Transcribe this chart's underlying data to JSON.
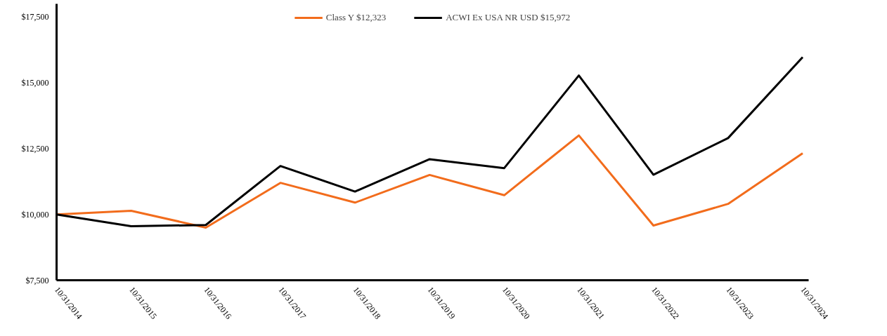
{
  "chart_data": {
    "type": "line",
    "categories": [
      "10/31/2014",
      "10/31/2015",
      "10/31/2016",
      "10/31/2017",
      "10/31/2018",
      "10/31/2019",
      "10/31/2020",
      "10/31/2021",
      "10/31/2022",
      "10/31/2023",
      "10/31/2024"
    ],
    "series": [
      {
        "name": "Class Y $12,323",
        "color": "#f26c1c",
        "values": [
          10000,
          10140,
          9500,
          11200,
          10450,
          11500,
          10730,
          13000,
          9580,
          10400,
          12323
        ]
      },
      {
        "name": "ACWI Ex USA NR USD $15,972",
        "color": "#000000",
        "values": [
          10000,
          9550,
          9600,
          11840,
          10870,
          12100,
          11760,
          15280,
          11510,
          12900,
          15972
        ]
      }
    ],
    "ylim": [
      7500,
      18000
    ],
    "yticks": [
      {
        "value": 7500,
        "label": "$7,500"
      },
      {
        "value": 10000,
        "label": "$10,000"
      },
      {
        "value": 12500,
        "label": "$12,500"
      },
      {
        "value": 15000,
        "label": "$15,000"
      },
      {
        "value": 17500,
        "label": "$17,500"
      }
    ],
    "grid": false,
    "legend": "top",
    "marker": "none",
    "line_style": "solid"
  }
}
